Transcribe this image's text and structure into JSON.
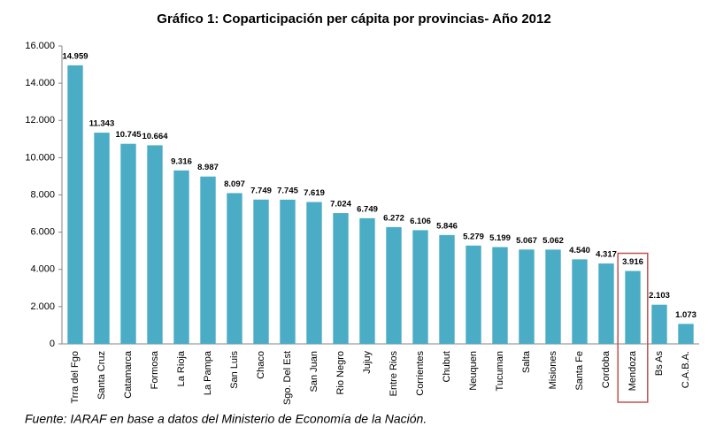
{
  "chart_data": {
    "type": "bar",
    "title": "Gráfico 1: Coparticipación per cápita por provincias- Año 2012",
    "source": "Fuente: IARAF en base a datos del Ministerio de Economía de la Nación.",
    "categories": [
      "Trra del Fgo",
      "Santa Cruz",
      "Catamarca",
      "Formosa",
      "La Rioja",
      "La Pampa",
      "San Luis",
      "Chaco",
      "Sgo. Del Est",
      "San Juan",
      "Rio Negro",
      "Jujuy",
      "Entre Rios",
      "Corrientes",
      "Chubut",
      "Neuquen",
      "Tucuman",
      "Salta",
      "Misiones",
      "Santa Fe",
      "Cordoba",
      "Mendoza",
      "Bs As",
      "C.A.B.A."
    ],
    "values": [
      14959,
      11343,
      10745,
      10664,
      9316,
      8987,
      8097,
      7749,
      7745,
      7619,
      7024,
      6749,
      6272,
      6106,
      5846,
      5279,
      5199,
      5067,
      5062,
      4540,
      4317,
      3916,
      2103,
      1073
    ],
    "value_labels": [
      "14.959",
      "11.343",
      "10.745",
      "10.664",
      "9.316",
      "8.987",
      "8.097",
      "7.749",
      "7.745",
      "7.619",
      "7.024",
      "6.749",
      "6.272",
      "6.106",
      "5.846",
      "5.279",
      "5.199",
      "5.067",
      "5.062",
      "4.540",
      "4.317",
      "3.916",
      "2.103",
      "1.073"
    ],
    "color": "#4bacc6",
    "ylim": [
      0,
      16000
    ],
    "yticks": [
      0,
      {
        "value": 2000,
        "label": "2.000"
      },
      {
        "value": 4000,
        "label": "4.000"
      },
      {
        "value": 6000,
        "label": "6.000"
      },
      {
        "value": 8000,
        "label": "8.000"
      },
      {
        "value": 10000,
        "label": "10.000"
      },
      {
        "value": 12000,
        "label": "12.000"
      },
      {
        "value": 14000,
        "label": "14.000"
      },
      {
        "value": 16000,
        "label": "16.000"
      }
    ],
    "grid": false,
    "highlight": {
      "index": 21,
      "color": "#c0504d"
    }
  }
}
